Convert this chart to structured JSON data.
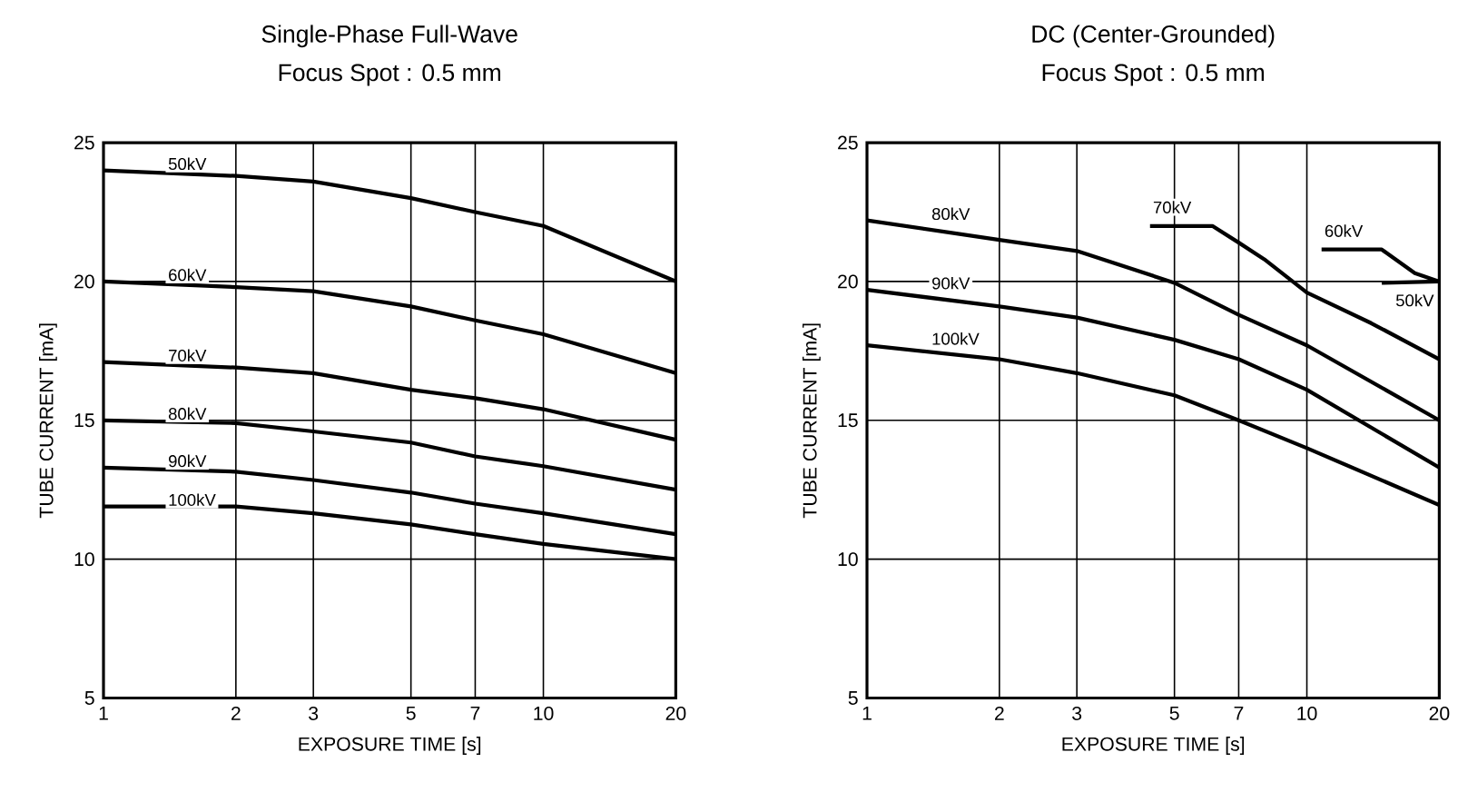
{
  "chart_data": [
    {
      "type": "line",
      "title": "Single-Phase Full-Wave",
      "subtitle": "Focus Spot : 0.5 mm",
      "xlabel": "EXPOSURE TIME [s]",
      "ylabel": "TUBE CURRENT [mA]",
      "log": "x",
      "grid": true,
      "marker": "none",
      "legend": false,
      "xlim": [
        1,
        20
      ],
      "ylim": [
        5,
        25
      ],
      "xticks": [
        1,
        2,
        3,
        5,
        7,
        10,
        20
      ],
      "yticks": [
        5,
        10,
        15,
        20,
        25
      ],
      "series": [
        {
          "name": "50kV",
          "color": "#000000",
          "x": [
            1,
            2,
            3,
            5,
            7,
            10,
            20
          ],
          "values": [
            24.0,
            23.8,
            23.6,
            23.0,
            22.5,
            22.0,
            20.0
          ]
        },
        {
          "name": "60kV",
          "color": "#000000",
          "x": [
            1,
            2,
            3,
            5,
            7,
            10,
            20
          ],
          "values": [
            20.0,
            19.8,
            19.65,
            19.1,
            18.6,
            18.1,
            16.7
          ]
        },
        {
          "name": "70kV",
          "color": "#000000",
          "x": [
            1,
            2,
            3,
            5,
            7,
            10,
            20
          ],
          "values": [
            17.1,
            16.9,
            16.7,
            16.1,
            15.8,
            15.4,
            14.3
          ]
        },
        {
          "name": "80kV",
          "color": "#000000",
          "x": [
            1,
            2,
            3,
            5,
            7,
            10,
            20
          ],
          "values": [
            15.0,
            14.9,
            14.6,
            14.2,
            13.7,
            13.35,
            12.5
          ]
        },
        {
          "name": "90kV",
          "color": "#000000",
          "x": [
            1,
            2,
            3,
            5,
            7,
            10,
            20
          ],
          "values": [
            13.3,
            13.15,
            12.85,
            12.4,
            12.0,
            11.65,
            10.9
          ]
        },
        {
          "name": "100kV",
          "color": "#000000",
          "x": [
            1,
            2,
            3,
            5,
            7,
            10,
            20
          ],
          "values": [
            11.9,
            11.9,
            11.65,
            11.25,
            10.9,
            10.55,
            10.0
          ]
        }
      ]
    },
    {
      "type": "line",
      "title": "DC (Center-Grounded)",
      "subtitle": "Focus Spot : 0.5 mm",
      "xlabel": "EXPOSURE TIME [s]",
      "ylabel": "TUBE CURRENT [mA]",
      "log": "x",
      "grid": true,
      "marker": "none",
      "legend": false,
      "xlim": [
        1,
        20
      ],
      "ylim": [
        5,
        25
      ],
      "xticks": [
        1,
        2,
        3,
        5,
        7,
        10,
        20
      ],
      "yticks": [
        5,
        10,
        15,
        20,
        25
      ],
      "series": [
        {
          "name": "80kV",
          "color": "#000000",
          "x": [
            1,
            2,
            3,
            5,
            7,
            10,
            20
          ],
          "values": [
            22.2,
            21.5,
            21.1,
            19.95,
            18.8,
            17.7,
            15.0
          ]
        },
        {
          "name": "90kV",
          "color": "#000000",
          "x": [
            1,
            2,
            3,
            5,
            7,
            10,
            20
          ],
          "values": [
            19.7,
            19.1,
            18.7,
            17.9,
            17.2,
            16.1,
            13.3
          ]
        },
        {
          "name": "100kV",
          "color": "#000000",
          "x": [
            1,
            2,
            3,
            5,
            7,
            10,
            20
          ],
          "values": [
            17.7,
            17.2,
            16.7,
            15.9,
            15.0,
            14.0,
            11.95
          ]
        },
        {
          "name": "70kV",
          "color": "#000000",
          "x": [
            4.4,
            6.1,
            7,
            8,
            10,
            14,
            20
          ],
          "values": [
            22.0,
            22.0,
            21.4,
            20.8,
            19.6,
            18.5,
            17.2
          ]
        },
        {
          "name": "60kV",
          "color": "#000000",
          "x": [
            10.8,
            14.8,
            17.6,
            20
          ],
          "values": [
            21.15,
            21.15,
            20.3,
            20.0
          ]
        },
        {
          "name": "50kV",
          "color": "#000000",
          "x": [
            14.8,
            20
          ],
          "values": [
            19.95,
            20.0
          ]
        }
      ]
    }
  ]
}
